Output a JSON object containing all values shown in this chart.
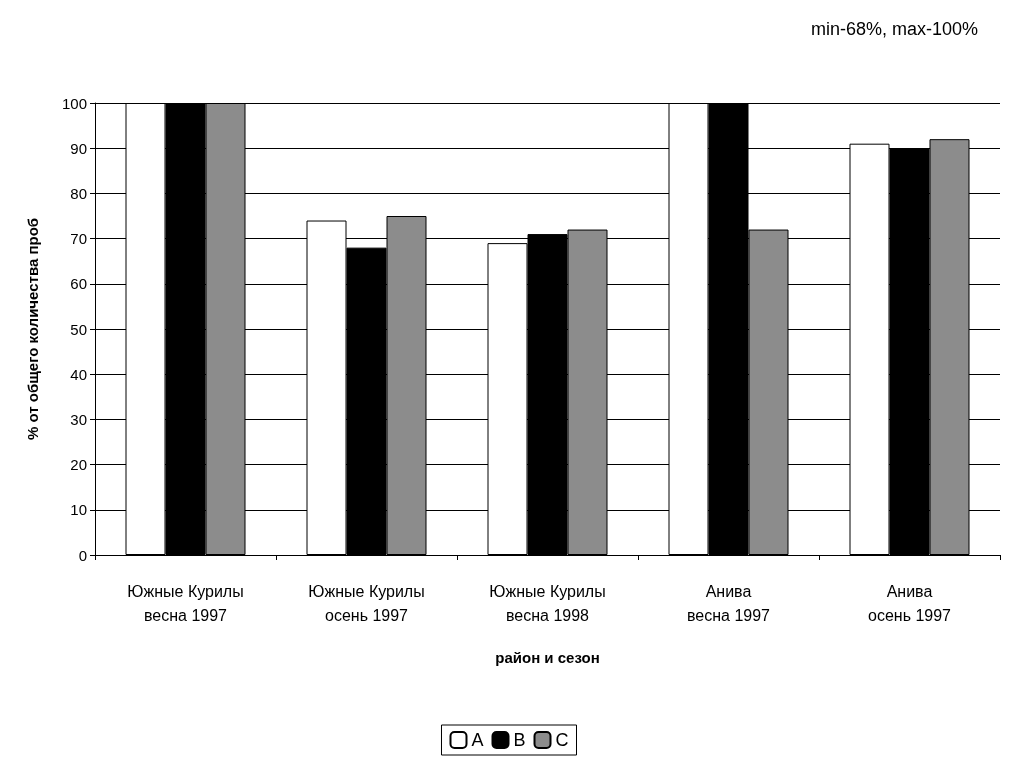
{
  "chart_data": {
    "type": "bar",
    "xlabel": "район и сезон",
    "ylabel": "% от общего количества проб",
    "annotations": [
      "min-68%, max-100%"
    ],
    "categories": [
      "Южные Курилы\nвесна 1997",
      "Южные Курилы\nосень 1997",
      "Южные Курилы\nвесна 1998",
      "Анива\nвесна 1997",
      "Анива\nосень 1997"
    ],
    "series": [
      {
        "name": "A",
        "color": "#ffffff",
        "values": [
          100,
          74,
          69,
          100,
          91
        ]
      },
      {
        "name": "B",
        "color": "#000000",
        "values": [
          100,
          68,
          71,
          100,
          90
        ]
      },
      {
        "name": "C",
        "color": "#8c8c8c",
        "values": [
          100,
          75,
          72,
          72,
          92
        ]
      }
    ],
    "ylim": [
      0,
      100
    ],
    "yticks": [
      0,
      10,
      20,
      30,
      40,
      50,
      60,
      70,
      80,
      90,
      100
    ],
    "grid": "y",
    "legend": "bottom"
  }
}
